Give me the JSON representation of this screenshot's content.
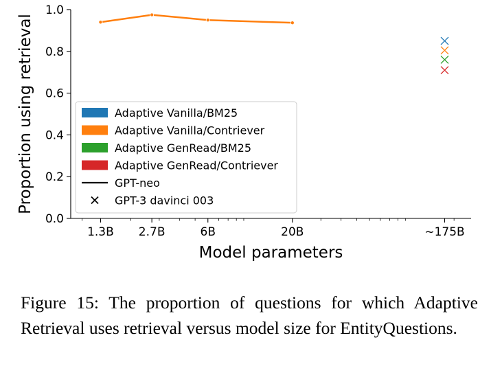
{
  "chart_data": {
    "type": "line",
    "xlabel": "Model parameters",
    "ylabel": "Proportion using retrieval",
    "ylim": [
      0.0,
      1.0
    ],
    "x_scale": "log",
    "yticks": [
      0.0,
      0.2,
      0.4,
      0.6,
      0.8,
      1.0
    ],
    "ytick_labels": [
      "0.0",
      "0.2",
      "0.4",
      "0.6",
      "0.8",
      "1.0"
    ],
    "xticks": [
      1.3,
      2.7,
      6,
      20,
      175
    ],
    "xtick_labels": [
      "1.3B",
      "2.7B",
      "6B",
      "20B",
      "~175B"
    ],
    "xlim_billions": [
      0.85,
      255
    ],
    "grid": false,
    "legend_position": "lower-left",
    "series": [
      {
        "name": "Adaptive Vanilla/BM25",
        "color": "#1f77b4",
        "gpt_neo": [],
        "gpt3": 0.85
      },
      {
        "name": "Adaptive Vanilla/Contriever",
        "color": "#ff7f0e",
        "gpt_neo": [
          {
            "x": 1.3,
            "y": 0.94
          },
          {
            "x": 2.7,
            "y": 0.975
          },
          {
            "x": 6,
            "y": 0.95
          },
          {
            "x": 20,
            "y": 0.937
          }
        ],
        "gpt3": 0.805
      },
      {
        "name": "Adaptive GenRead/BM25",
        "color": "#2ca02c",
        "gpt_neo": [],
        "gpt3": 0.76
      },
      {
        "name": "Adaptive GenRead/Contriever",
        "color": "#d62728",
        "gpt_neo": [],
        "gpt3": 0.71
      }
    ],
    "legend_extra": [
      {
        "name": "GPT-neo",
        "marker": "line"
      },
      {
        "name": "GPT-3 davinci 003",
        "marker": "x"
      }
    ]
  },
  "caption": "Figure 15: The proportion of questions for which Adaptive Retrieval uses retrieval versus model size for EntityQuestions."
}
